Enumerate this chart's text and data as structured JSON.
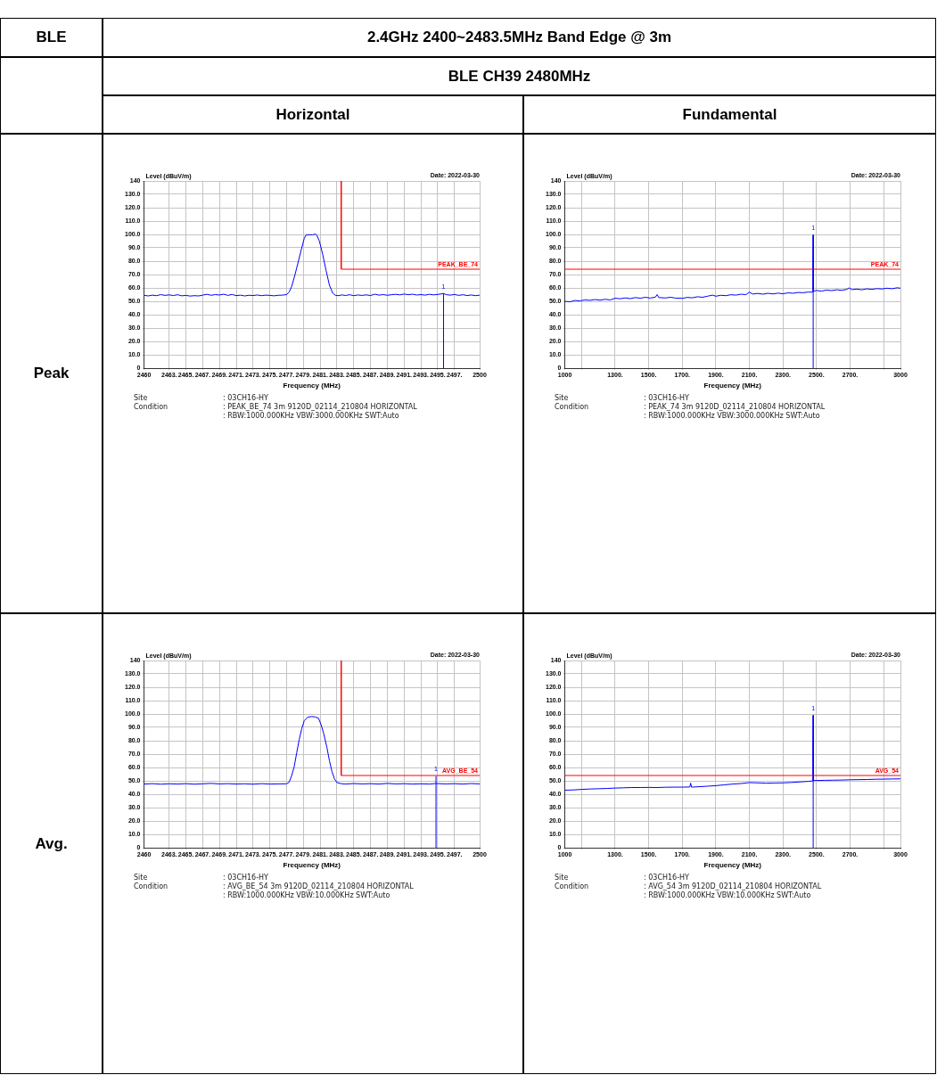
{
  "chart_data": [
    {
      "type": "line",
      "title": "Horizontal",
      "xlabel": "Frequency (MHz)",
      "ylabel": "Level (dBuV/m)",
      "xlim": [
        2460,
        2500
      ],
      "ylim": [
        0,
        140
      ],
      "xticks": [
        2460,
        {
          "value": 2463,
          "label": "2463."
        },
        {
          "value": 2465,
          "label": "2465."
        },
        {
          "value": 2467,
          "label": "2467."
        },
        {
          "value": 2469,
          "label": "2469."
        },
        {
          "value": 2471,
          "label": "2471."
        },
        {
          "value": 2473,
          "label": "2473."
        },
        {
          "value": 2475,
          "label": "2475."
        },
        {
          "value": 2477,
          "label": "2477."
        },
        {
          "value": 2479,
          "label": "2479."
        },
        {
          "value": 2481,
          "label": "2481."
        },
        {
          "value": 2483,
          "label": "2483."
        },
        {
          "value": 2485,
          "label": "2485."
        },
        {
          "value": 2487,
          "label": "2487."
        },
        {
          "value": 2489,
          "label": "2489."
        },
        {
          "value": 2491,
          "label": "2491."
        },
        {
          "value": 2493,
          "label": "2493."
        },
        {
          "value": 2495,
          "label": "2495."
        },
        {
          "value": 2497,
          "label": "2497."
        },
        2500
      ],
      "yticks": [
        {
          "value": 0,
          "label": "0"
        },
        {
          "value": 10,
          "label": "10.0"
        },
        {
          "value": 20,
          "label": "20.0"
        },
        {
          "value": 30,
          "label": "30.0"
        },
        {
          "value": 40,
          "label": "40.0"
        },
        {
          "value": 50,
          "label": "50.0"
        },
        {
          "value": 60,
          "label": "60.0"
        },
        {
          "value": 70,
          "label": "70.0"
        },
        {
          "value": 80,
          "label": "80.0"
        },
        {
          "value": 90,
          "label": "90.0"
        },
        {
          "value": 100,
          "label": "100.0"
        },
        {
          "value": 110,
          "label": "110.0"
        },
        {
          "value": 120,
          "label": "120.0"
        },
        {
          "value": 130,
          "label": "130.0"
        },
        {
          "value": 140,
          "label": "140"
        }
      ],
      "grid": true,
      "legend": false,
      "marker": "none",
      "line_style": "solid",
      "series": [
        {
          "color": "#0000ff",
          "x": [
            2460,
            2460.5,
            2461,
            2461.5,
            2462,
            2462.5,
            2463,
            2463.5,
            2464,
            2464.5,
            2465,
            2465.5,
            2466,
            2466.5,
            2467,
            2467.5,
            2468,
            2468.5,
            2469,
            2469.5,
            2470,
            2470.5,
            2471,
            2471.5,
            2472,
            2472.5,
            2473,
            2473.5,
            2474,
            2474.5,
            2475,
            2475.5,
            2476,
            2476.5,
            2477,
            2477.3,
            2477.6,
            2478,
            2478.4,
            2478.8,
            2479.1,
            2479.3,
            2479.7,
            2480.1,
            2480.4,
            2480.6,
            2480.9,
            2481.3,
            2481.7,
            2482.1,
            2482.5,
            2482.8,
            2483.2,
            2483.6,
            2484,
            2484.5,
            2485,
            2485.5,
            2486,
            2486.5,
            2487,
            2487.5,
            2488,
            2488.5,
            2489,
            2489.5,
            2490,
            2490.5,
            2491,
            2491.5,
            2492,
            2492.5,
            2493,
            2493.5,
            2494,
            2494.5,
            2495,
            2495.7,
            2496,
            2496.5,
            2497,
            2497.5,
            2498,
            2498.5,
            2499,
            2499.5,
            2500
          ],
          "values": [
            54.5,
            54.0,
            54.6,
            54.2,
            55.0,
            54.4,
            54.8,
            54.3,
            54.9,
            54.1,
            54.4,
            53.9,
            54.2,
            54.0,
            54.6,
            55.2,
            54.5,
            55.0,
            54.7,
            55.3,
            54.4,
            55.1,
            54.2,
            54.6,
            54.0,
            54.5,
            54.3,
            54.7,
            54.2,
            54.6,
            54.4,
            54.1,
            54.5,
            54.6,
            55.0,
            57,
            61,
            70,
            80,
            90,
            97,
            99.5,
            99.8,
            99.7,
            100.3,
            99.5,
            95,
            85,
            73,
            62,
            56,
            54.5,
            54.2,
            54.8,
            54.3,
            54.9,
            54.2,
            54.7,
            54.4,
            54.8,
            54.3,
            55.3,
            54.6,
            55.0,
            54.5,
            54.9,
            55.2,
            54.8,
            55.4,
            54.9,
            55.3,
            54.7,
            55.0,
            54.6,
            55.2,
            54.8,
            55.1,
            55.8,
            55.0,
            54.6,
            55.1,
            54.4,
            54.9,
            54.3,
            54.7,
            54.2,
            54.6
          ]
        },
        {
          "name": "PEAK_BE_74",
          "color": "#ff0000",
          "x": [
            2483.5,
            2483.5,
            2500
          ],
          "values": [
            140,
            74,
            74
          ]
        }
      ],
      "annotations": [
        "Date: 2022-03-30",
        "Site",
        ": 03CH16-HY",
        "Condition",
        ": PEAK_BE_74 3m 9120D_02114_210804 HORIZONTAL",
        ": RBW:1000.000KHz VBW:3000.000KHz SWT:Auto",
        "BLE",
        "2.4GHz 2400~2483.5MHz Band Edge @ 3m",
        "BLE CH39 2480MHz",
        "Peak",
        {
          "text": "1",
          "x": 2495.7,
          "y": 55.8
        }
      ]
    },
    {
      "type": "line",
      "title": "Fundamental",
      "xlabel": "Frequency (MHz)",
      "ylabel": "Level (dBuV/m)",
      "xlim": [
        1000,
        3000
      ],
      "ylim": [
        0,
        140
      ],
      "xticks": [
        1000,
        {
          "value": 1100,
          "label": null
        },
        {
          "value": 1300,
          "label": "1300."
        },
        {
          "value": 1500,
          "label": "1500."
        },
        {
          "value": 1700,
          "label": "1700."
        },
        {
          "value": 1900,
          "label": "1900."
        },
        {
          "value": 2100,
          "label": "2100."
        },
        {
          "value": 2300,
          "label": "2300."
        },
        {
          "value": 2500,
          "label": "2500."
        },
        {
          "value": 2700,
          "label": "2700."
        },
        {
          "value": 2900,
          "label": null
        },
        3000
      ],
      "yticks": [
        {
          "value": 0,
          "label": "0"
        },
        {
          "value": 10,
          "label": "10.0"
        },
        {
          "value": 20,
          "label": "20.0"
        },
        {
          "value": 30,
          "label": "30.0"
        },
        {
          "value": 40,
          "label": "40.0"
        },
        {
          "value": 50,
          "label": "50.0"
        },
        {
          "value": 60,
          "label": "60.0"
        },
        {
          "value": 70,
          "label": "70.0"
        },
        {
          "value": 80,
          "label": "80.0"
        },
        {
          "value": 90,
          "label": "90.0"
        },
        {
          "value": 100,
          "label": "100.0"
        },
        {
          "value": 110,
          "label": "110.0"
        },
        {
          "value": 120,
          "label": "120.0"
        },
        {
          "value": 130,
          "label": "130.0"
        },
        {
          "value": 140,
          "label": "140"
        }
      ],
      "grid": true,
      "legend": false,
      "marker": "none",
      "line_style": "solid",
      "series": [
        {
          "color": "#0000ff",
          "x": [
            1000,
            1030,
            1060,
            1090,
            1120,
            1150,
            1180,
            1210,
            1240,
            1270,
            1300,
            1330,
            1360,
            1390,
            1420,
            1450,
            1480,
            1510,
            1540,
            1550,
            1560,
            1600,
            1630,
            1660,
            1700,
            1730,
            1760,
            1790,
            1820,
            1850,
            1880,
            1900,
            1930,
            1960,
            1990,
            2020,
            2050,
            2080,
            2100,
            2120,
            2150,
            2180,
            2210,
            2240,
            2270,
            2300,
            2330,
            2360,
            2390,
            2420,
            2450,
            2475,
            2478,
            2480,
            2482,
            2500,
            2530,
            2560,
            2590,
            2620,
            2650,
            2680,
            2695,
            2710,
            2740,
            2770,
            2800,
            2830,
            2860,
            2890,
            2920,
            2950,
            2980,
            3000
          ],
          "values": [
            50.0,
            49.6,
            50.6,
            50.3,
            51.0,
            50.7,
            51.3,
            50.8,
            51.5,
            51.0,
            52.3,
            51.9,
            52.5,
            52.0,
            52.8,
            52.3,
            53.0,
            52.4,
            53.1,
            55.0,
            52.8,
            52.5,
            53.0,
            52.4,
            52.2,
            52.9,
            52.6,
            53.4,
            53.0,
            53.8,
            54.6,
            53.8,
            54.5,
            54.2,
            54.9,
            54.6,
            55.3,
            55.0,
            56.8,
            55.4,
            55.9,
            55.3,
            56.0,
            55.5,
            56.1,
            55.6,
            56.3,
            56.0,
            56.6,
            56.4,
            56.9,
            56.8,
            78.0,
            99.6,
            57.5,
            58.1,
            57.6,
            58.4,
            58.0,
            58.6,
            58.2,
            58.9,
            60.0,
            58.7,
            59.1,
            58.6,
            59.3,
            58.9,
            59.5,
            59.2,
            59.8,
            59.4,
            60.1,
            59.8
          ]
        }
      ],
      "ref_lines": [
        {
          "axis": "y",
          "value": 74,
          "label": "PEAK_74",
          "color": "#ff0000"
        }
      ],
      "annotations": [
        "Date: 2022-03-30",
        "Site",
        ": 03CH16-HY",
        "Condition",
        ": PEAK_74 3m 9120D_02114_210804 HORIZONTAL",
        ": RBW:1000.000KHz VBW:3000.000KHz SWT:Auto",
        {
          "text": "1",
          "x": 2480,
          "y": 99.6
        }
      ]
    },
    {
      "type": "line",
      "xlabel": "Frequency (MHz)",
      "ylabel": "Level (dBuV/m)",
      "xlim": [
        2460,
        2500
      ],
      "ylim": [
        0,
        140
      ],
      "xticks": [
        2460,
        {
          "value": 2463,
          "label": "2463."
        },
        {
          "value": 2465,
          "label": "2465."
        },
        {
          "value": 2467,
          "label": "2467."
        },
        {
          "value": 2469,
          "label": "2469."
        },
        {
          "value": 2471,
          "label": "2471."
        },
        {
          "value": 2473,
          "label": "2473."
        },
        {
          "value": 2475,
          "label": "2475."
        },
        {
          "value": 2477,
          "label": "2477."
        },
        {
          "value": 2479,
          "label": "2479."
        },
        {
          "value": 2481,
          "label": "2481."
        },
        {
          "value": 2483,
          "label": "2483."
        },
        {
          "value": 2485,
          "label": "2485."
        },
        {
          "value": 2487,
          "label": "2487."
        },
        {
          "value": 2489,
          "label": "2489."
        },
        {
          "value": 2491,
          "label": "2491."
        },
        {
          "value": 2493,
          "label": "2493."
        },
        {
          "value": 2495,
          "label": "2495."
        },
        {
          "value": 2497,
          "label": "2497."
        },
        2500
      ],
      "yticks": [
        {
          "value": 0,
          "label": "0"
        },
        {
          "value": 10,
          "label": "10.0"
        },
        {
          "value": 20,
          "label": "20.0"
        },
        {
          "value": 30,
          "label": "30.0"
        },
        {
          "value": 40,
          "label": "40.0"
        },
        {
          "value": 50,
          "label": "50.0"
        },
        {
          "value": 60,
          "label": "60.0"
        },
        {
          "value": 70,
          "label": "70.0"
        },
        {
          "value": 80,
          "label": "80.0"
        },
        {
          "value": 90,
          "label": "90.0"
        },
        {
          "value": 100,
          "label": "100.0"
        },
        {
          "value": 110,
          "label": "110.0"
        },
        {
          "value": 120,
          "label": "120.0"
        },
        {
          "value": 130,
          "label": "130.0"
        },
        {
          "value": 140,
          "label": "140"
        }
      ],
      "grid": true,
      "legend": false,
      "marker": "none",
      "line_style": "solid",
      "series": [
        {
          "color": "#0000ff",
          "x": [
            2460,
            2461,
            2462,
            2463,
            2464,
            2465,
            2466,
            2467,
            2468,
            2469,
            2470,
            2471,
            2472,
            2473,
            2474,
            2475,
            2476,
            2477,
            2477.3,
            2477.6,
            2477.9,
            2478.2,
            2478.5,
            2478.8,
            2479.1,
            2479.5,
            2480.0,
            2480.4,
            2480.8,
            2481.1,
            2481.4,
            2481.8,
            2482.1,
            2482.4,
            2482.7,
            2483.0,
            2483.5,
            2484,
            2485,
            2486,
            2487,
            2488,
            2489,
            2490,
            2491,
            2492,
            2493,
            2494,
            2494.8,
            2496,
            2497,
            2498,
            2499,
            2500
          ],
          "values": [
            47.6,
            47.9,
            47.5,
            47.8,
            47.6,
            47.9,
            47.5,
            47.8,
            48.1,
            47.7,
            47.9,
            47.6,
            47.8,
            47.5,
            47.9,
            47.6,
            47.7,
            47.8,
            49,
            54,
            60.6,
            71,
            81,
            89,
            95,
            97.6,
            98.1,
            97.8,
            96.8,
            92,
            85.8,
            75,
            65,
            57,
            51.5,
            48.7,
            47.9,
            47.6,
            48.0,
            47.7,
            47.9,
            47.6,
            48.1,
            47.7,
            47.9,
            47.6,
            47.8,
            47.6,
            48.0,
            47.7,
            47.9,
            47.6,
            48.0,
            47.7
          ]
        },
        {
          "name": "AVG_BE_54",
          "color": "#ff0000",
          "x": [
            2483.5,
            2483.5,
            2500
          ],
          "values": [
            140,
            54,
            54
          ]
        }
      ],
      "annotations": [
        "Date: 2022-03-30",
        "Site",
        ": 03CH16-HY",
        "Condition",
        ": AVG_BE_54 3m 9120D_02114_210804 HORIZONTAL",
        ": RBW:1000.000KHz VBW:10.000KHz SWT:Auto",
        "Avg.",
        {
          "text": "1",
          "x": 2494.8,
          "y": 53.5
        }
      ]
    },
    {
      "type": "line",
      "xlabel": "Frequency (MHz)",
      "ylabel": "Level (dBuV/m)",
      "xlim": [
        1000,
        3000
      ],
      "ylim": [
        0,
        140
      ],
      "xticks": [
        1000,
        {
          "value": 1100,
          "label": null
        },
        {
          "value": 1300,
          "label": "1300."
        },
        {
          "value": 1500,
          "label": "1500."
        },
        {
          "value": 1700,
          "label": "1700."
        },
        {
          "value": 1900,
          "label": "1900."
        },
        {
          "value": 2100,
          "label": "2100."
        },
        {
          "value": 2300,
          "label": "2300."
        },
        {
          "value": 2500,
          "label": "2500."
        },
        {
          "value": 2700,
          "label": "2700."
        },
        {
          "value": 2900,
          "label": null
        },
        3000
      ],
      "yticks": [
        {
          "value": 0,
          "label": "0"
        },
        {
          "value": 10,
          "label": "10.0"
        },
        {
          "value": 20,
          "label": "20.0"
        },
        {
          "value": 30,
          "label": "30.0"
        },
        {
          "value": 40,
          "label": "40.0"
        },
        {
          "value": 50,
          "label": "50.0"
        },
        {
          "value": 60,
          "label": "60.0"
        },
        {
          "value": 70,
          "label": "70.0"
        },
        {
          "value": 80,
          "label": "80.0"
        },
        {
          "value": 90,
          "label": "90.0"
        },
        {
          "value": 100,
          "label": "100.0"
        },
        {
          "value": 110,
          "label": "110.0"
        },
        {
          "value": 120,
          "label": "120.0"
        },
        {
          "value": 130,
          "label": "130.0"
        },
        {
          "value": 140,
          "label": "140"
        }
      ],
      "grid": true,
      "legend": false,
      "marker": "none",
      "line_style": "solid",
      "series": [
        {
          "color": "#0000ff",
          "x": [
            1000,
            1050,
            1100,
            1150,
            1200,
            1250,
            1300,
            1350,
            1400,
            1450,
            1500,
            1550,
            1600,
            1650,
            1700,
            1745,
            1750,
            1755,
            1800,
            1850,
            1900,
            1950,
            2000,
            2050,
            2100,
            2150,
            2200,
            2250,
            2300,
            2350,
            2400,
            2450,
            2475,
            2478,
            2480,
            2482,
            2500,
            2550,
            2600,
            2650,
            2700,
            2750,
            2800,
            2850,
            2900,
            2950,
            3000
          ],
          "values": [
            43.0,
            43.2,
            43.6,
            43.9,
            44.1,
            44.3,
            44.6,
            44.8,
            45.0,
            45.0,
            45.1,
            45.0,
            45.2,
            45.3,
            45.3,
            45.4,
            48.3,
            45.3,
            45.6,
            46.0,
            46.4,
            47.0,
            47.6,
            48.0,
            48.7,
            48.5,
            48.3,
            48.4,
            48.5,
            48.8,
            49.2,
            49.6,
            49.9,
            72.0,
            99.0,
            50.2,
            50.3,
            50.4,
            50.5,
            50.6,
            50.8,
            50.9,
            51.0,
            51.2,
            51.3,
            51.4,
            51.5
          ]
        }
      ],
      "ref_lines": [
        {
          "axis": "y",
          "value": 54,
          "label": "AVG_54",
          "color": "#ff0000"
        }
      ],
      "annotations": [
        "Date: 2022-03-30",
        "Site",
        ": 03CH16-HY",
        "Condition",
        ": AVG_54 3m 9120D_02114_210804 HORIZONTAL",
        ": RBW:1000.000KHz VBW:10.000KHz SWT:Auto",
        {
          "text": "1",
          "x": 2480,
          "y": 99.0
        }
      ]
    }
  ]
}
